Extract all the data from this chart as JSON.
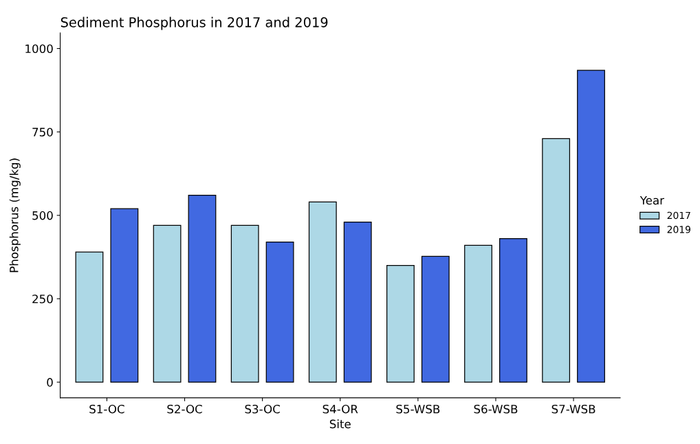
{
  "chart_data": {
    "type": "bar",
    "title": "Sediment Phosphorus in 2017 and 2019",
    "xlabel": "Site",
    "ylabel": "Phosphorus (mg/kg)",
    "legend_title": "Year",
    "categories": [
      "S1-OC",
      "S2-OC",
      "S3-OC",
      "S4-OR",
      "S5-WSB",
      "S6-WSB",
      "S7-WSB"
    ],
    "series": [
      {
        "name": "2017",
        "color": "#add8e6",
        "values": [
          390,
          470,
          470,
          540,
          350,
          410,
          730
        ]
      },
      {
        "name": "2019",
        "color": "#4169e1",
        "values": [
          520,
          560,
          420,
          480,
          377,
          430,
          935
        ]
      }
    ],
    "ylim": [
      -47,
      1047
    ],
    "yticks": [
      0,
      250,
      500,
      750,
      1000
    ],
    "grid": false,
    "legend": "right"
  }
}
